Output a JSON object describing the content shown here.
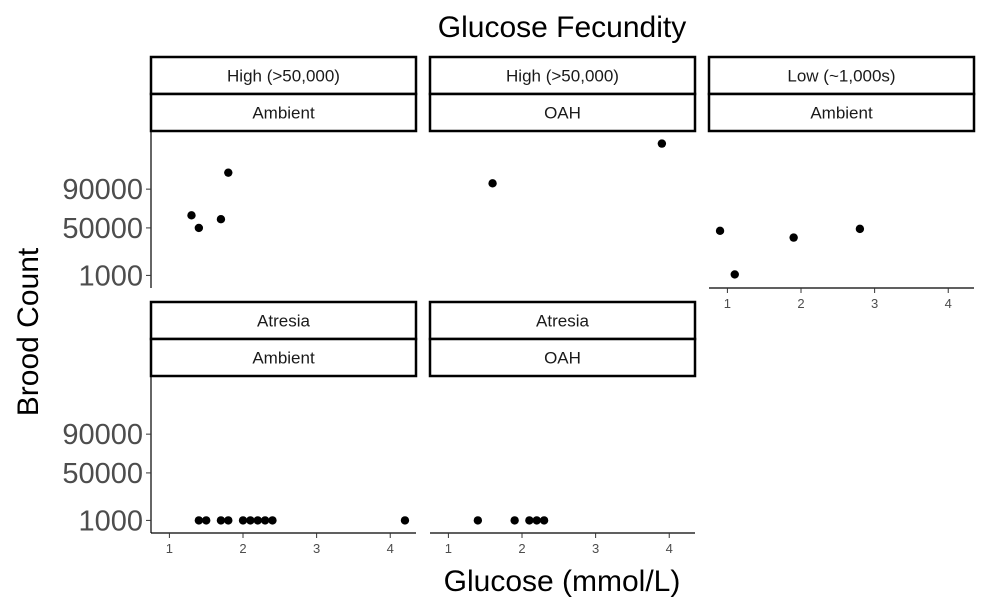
{
  "chart_data": {
    "type": "scatter",
    "title": "Glucose Fecundity",
    "xlabel": "Glucose (mmol/L)",
    "ylabel": "Brood Count",
    "x_ticks": [
      1,
      2,
      3,
      4
    ],
    "y_ticks": [
      1000,
      50000,
      90000
    ],
    "xlim": [
      0.75,
      4.35
    ],
    "ylim": [
      -12000,
      150000
    ],
    "grid": false,
    "facets": [
      {
        "strip_top": "High (>50,000)",
        "strip_bottom": "Ambient",
        "points": [
          {
            "x": 1.3,
            "y": 63000
          },
          {
            "x": 1.4,
            "y": 50000
          },
          {
            "x": 1.7,
            "y": 59000
          },
          {
            "x": 1.8,
            "y": 107000
          }
        ]
      },
      {
        "strip_top": "High (>50,000)",
        "strip_bottom": "OAH",
        "points": [
          {
            "x": 1.6,
            "y": 96000
          },
          {
            "x": 3.9,
            "y": 137000
          }
        ]
      },
      {
        "strip_top": "Low (~1,000s)",
        "strip_bottom": "Ambient",
        "points": [
          {
            "x": 0.9,
            "y": 47000
          },
          {
            "x": 1.1,
            "y": 2000
          },
          {
            "x": 1.9,
            "y": 40000
          },
          {
            "x": 2.8,
            "y": 49000
          }
        ]
      },
      {
        "strip_top": "Atresia",
        "strip_bottom": "Ambient",
        "points": [
          {
            "x": 1.4,
            "y": 1000
          },
          {
            "x": 1.5,
            "y": 1000
          },
          {
            "x": 1.7,
            "y": 1000
          },
          {
            "x": 1.8,
            "y": 1000
          },
          {
            "x": 2.0,
            "y": 1000
          },
          {
            "x": 2.1,
            "y": 1000
          },
          {
            "x": 2.2,
            "y": 1000
          },
          {
            "x": 2.3,
            "y": 1000
          },
          {
            "x": 2.4,
            "y": 1000
          },
          {
            "x": 4.2,
            "y": 1000
          }
        ]
      },
      {
        "strip_top": "Atresia",
        "strip_bottom": "OAH",
        "points": [
          {
            "x": 1.4,
            "y": 1000
          },
          {
            "x": 1.9,
            "y": 1000
          },
          {
            "x": 2.1,
            "y": 1000
          },
          {
            "x": 2.2,
            "y": 1000
          },
          {
            "x": 2.3,
            "y": 1000
          }
        ]
      }
    ]
  }
}
